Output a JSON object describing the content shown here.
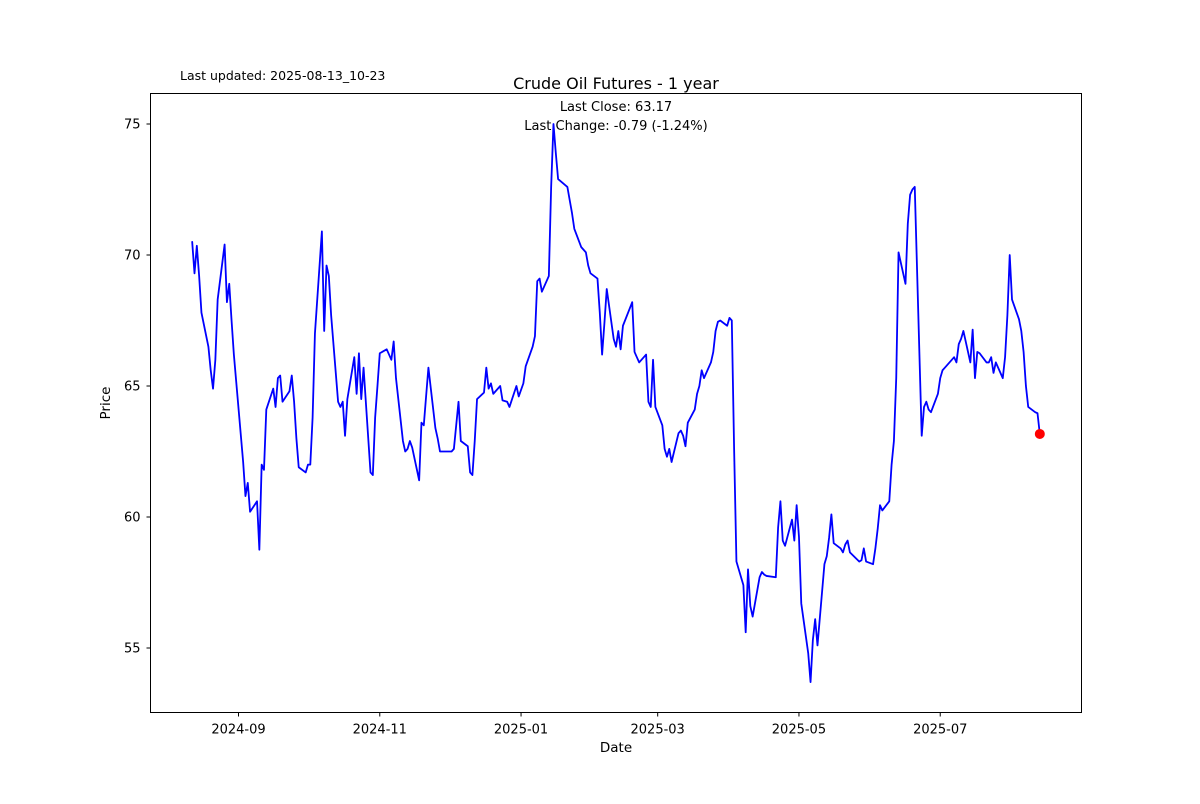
{
  "figure": {
    "title": "Crude Oil Futures - 1 year",
    "last_updated_text": "Last updated: 2025-08-13_10-23",
    "annotation_line1": "Last Close: 63.17",
    "annotation_line2": "Last Change: -0.79 (-1.24%)",
    "xlabel": "Date",
    "ylabel": "Price"
  },
  "chart_data": {
    "type": "line",
    "title": "Crude Oil Futures - 1 year",
    "xlabel": "Date",
    "ylabel": "Price",
    "legend": "none",
    "grid": false,
    "line_color": "#0000ff",
    "last_point_marker_color": "#ff0000",
    "frame_color": "#000000",
    "x_tick_labels": [
      "2024-09",
      "2024-11",
      "2025-01",
      "2025-03",
      "2025-05",
      "2025-07"
    ],
    "y_tick_values": [
      75,
      70,
      65,
      60,
      55
    ],
    "xlim": [
      "2024-07-25",
      "2025-08-31"
    ],
    "ylim": [
      52.6,
      76.1
    ],
    "last_close": 63.17,
    "last_change_abs": -0.79,
    "last_change_pct": -1.24,
    "series": [
      {
        "name": "Crude Oil Futures price",
        "dates": [
          "2024-08-12",
          "2024-08-13",
          "2024-08-14",
          "2024-08-15",
          "2024-08-16",
          "2024-08-19",
          "2024-08-20",
          "2024-08-21",
          "2024-08-22",
          "2024-08-23",
          "2024-08-26",
          "2024-08-27",
          "2024-08-28",
          "2024-08-29",
          "2024-08-30",
          "2024-09-03",
          "2024-09-04",
          "2024-09-05",
          "2024-09-06",
          "2024-09-09",
          "2024-09-10",
          "2024-09-11",
          "2024-09-12",
          "2024-09-13",
          "2024-09-16",
          "2024-09-17",
          "2024-09-18",
          "2024-09-19",
          "2024-09-20",
          "2024-09-23",
          "2024-09-24",
          "2024-09-25",
          "2024-09-26",
          "2024-09-27",
          "2024-09-30",
          "2024-10-01",
          "2024-10-02",
          "2024-10-03",
          "2024-10-04",
          "2024-10-07",
          "2024-10-08",
          "2024-10-09",
          "2024-10-10",
          "2024-10-11",
          "2024-10-14",
          "2024-10-15",
          "2024-10-16",
          "2024-10-17",
          "2024-10-18",
          "2024-10-21",
          "2024-10-22",
          "2024-10-23",
          "2024-10-24",
          "2024-10-25",
          "2024-10-28",
          "2024-10-29",
          "2024-10-30",
          "2024-10-31",
          "2024-11-01",
          "2024-11-04",
          "2024-11-05",
          "2024-11-06",
          "2024-11-07",
          "2024-11-08",
          "2024-11-11",
          "2024-11-12",
          "2024-11-13",
          "2024-11-14",
          "2024-11-15",
          "2024-11-18",
          "2024-11-19",
          "2024-11-20",
          "2024-11-21",
          "2024-11-22",
          "2024-11-25",
          "2024-11-26",
          "2024-11-27",
          "2024-12-02",
          "2024-12-03",
          "2024-12-04",
          "2024-12-05",
          "2024-12-06",
          "2024-12-09",
          "2024-12-10",
          "2024-12-11",
          "2024-12-12",
          "2024-12-13",
          "2024-12-16",
          "2024-12-17",
          "2024-12-18",
          "2024-12-19",
          "2024-12-20",
          "2024-12-23",
          "2024-12-24",
          "2024-12-26",
          "2024-12-27",
          "2024-12-30",
          "2024-12-31",
          "2025-01-02",
          "2025-01-03",
          "2025-01-06",
          "2025-01-07",
          "2025-01-08",
          "2025-01-09",
          "2025-01-10",
          "2025-01-13",
          "2025-01-14",
          "2025-01-15",
          "2025-01-16",
          "2025-01-17",
          "2025-01-21",
          "2025-01-22",
          "2025-01-23",
          "2025-01-24",
          "2025-01-27",
          "2025-01-28",
          "2025-01-29",
          "2025-01-30",
          "2025-01-31",
          "2025-02-03",
          "2025-02-04",
          "2025-02-05",
          "2025-02-06",
          "2025-02-07",
          "2025-02-10",
          "2025-02-11",
          "2025-02-12",
          "2025-02-13",
          "2025-02-14",
          "2025-02-18",
          "2025-02-19",
          "2025-02-20",
          "2025-02-21",
          "2025-02-24",
          "2025-02-25",
          "2025-02-26",
          "2025-02-27",
          "2025-02-28",
          "2025-03-03",
          "2025-03-04",
          "2025-03-05",
          "2025-03-06",
          "2025-03-07",
          "2025-03-10",
          "2025-03-11",
          "2025-03-12",
          "2025-03-13",
          "2025-03-14",
          "2025-03-17",
          "2025-03-18",
          "2025-03-19",
          "2025-03-20",
          "2025-03-21",
          "2025-03-24",
          "2025-03-25",
          "2025-03-26",
          "2025-03-27",
          "2025-03-28",
          "2025-03-31",
          "2025-04-01",
          "2025-04-02",
          "2025-04-03",
          "2025-04-04",
          "2025-04-07",
          "2025-04-08",
          "2025-04-09",
          "2025-04-10",
          "2025-04-11",
          "2025-04-14",
          "2025-04-15",
          "2025-04-16",
          "2025-04-17",
          "2025-04-21",
          "2025-04-22",
          "2025-04-23",
          "2025-04-24",
          "2025-04-25",
          "2025-04-28",
          "2025-04-29",
          "2025-04-30",
          "2025-05-01",
          "2025-05-02",
          "2025-05-05",
          "2025-05-06",
          "2025-05-07",
          "2025-05-08",
          "2025-05-09",
          "2025-05-12",
          "2025-05-13",
          "2025-05-14",
          "2025-05-15",
          "2025-05-16",
          "2025-05-19",
          "2025-05-20",
          "2025-05-21",
          "2025-05-22",
          "2025-05-23",
          "2025-05-27",
          "2025-05-28",
          "2025-05-29",
          "2025-05-30",
          "2025-06-02",
          "2025-06-03",
          "2025-06-04",
          "2025-06-05",
          "2025-06-06",
          "2025-06-09",
          "2025-06-10",
          "2025-06-11",
          "2025-06-12",
          "2025-06-13",
          "2025-06-16",
          "2025-06-17",
          "2025-06-18",
          "2025-06-19",
          "2025-06-20",
          "2025-06-23",
          "2025-06-24",
          "2025-06-25",
          "2025-06-26",
          "2025-06-27",
          "2025-06-30",
          "2025-07-01",
          "2025-07-02",
          "2025-07-03",
          "2025-07-07",
          "2025-07-08",
          "2025-07-09",
          "2025-07-10",
          "2025-07-11",
          "2025-07-14",
          "2025-07-15",
          "2025-07-16",
          "2025-07-17",
          "2025-07-18",
          "2025-07-21",
          "2025-07-22",
          "2025-07-23",
          "2025-07-24",
          "2025-07-25",
          "2025-07-28",
          "2025-07-29",
          "2025-07-30",
          "2025-07-31",
          "2025-08-01",
          "2025-08-04",
          "2025-08-05",
          "2025-08-06",
          "2025-08-07",
          "2025-08-08",
          "2025-08-11",
          "2025-08-12",
          "2025-08-13"
        ],
        "values": [
          70.5,
          69.3,
          70.35,
          69.2,
          67.8,
          66.5,
          65.6,
          64.9,
          66.0,
          68.3,
          70.4,
          68.2,
          68.9,
          67.5,
          66.2,
          62.1,
          60.8,
          61.3,
          60.2,
          60.6,
          58.75,
          62.0,
          61.8,
          64.1,
          64.9,
          64.2,
          65.3,
          65.4,
          64.4,
          64.8,
          65.4,
          64.4,
          63.0,
          61.9,
          61.7,
          62.0,
          62.0,
          63.8,
          67.0,
          70.9,
          67.1,
          69.6,
          69.2,
          67.7,
          64.4,
          64.2,
          64.4,
          63.1,
          64.5,
          66.1,
          64.7,
          66.25,
          64.5,
          65.7,
          61.7,
          61.6,
          63.8,
          65.0,
          66.25,
          66.4,
          66.2,
          66.0,
          66.7,
          65.3,
          62.9,
          62.5,
          62.6,
          62.9,
          62.65,
          61.4,
          63.6,
          63.5,
          64.6,
          65.7,
          63.4,
          63.0,
          62.5,
          62.5,
          62.6,
          63.5,
          64.4,
          62.9,
          62.7,
          61.7,
          61.6,
          62.9,
          64.5,
          64.75,
          65.7,
          64.9,
          65.1,
          64.7,
          65.0,
          64.45,
          64.4,
          64.2,
          65.0,
          64.6,
          65.1,
          65.75,
          66.5,
          66.9,
          69.0,
          69.1,
          68.6,
          69.2,
          72.6,
          75.0,
          73.9,
          72.9,
          72.6,
          72.1,
          71.6,
          71.0,
          70.3,
          70.2,
          70.1,
          69.6,
          69.3,
          69.1,
          67.8,
          66.2,
          67.4,
          68.7,
          66.8,
          66.5,
          67.1,
          66.4,
          67.3,
          68.2,
          66.3,
          66.1,
          65.9,
          66.2,
          64.4,
          64.2,
          66.0,
          64.2,
          63.5,
          62.6,
          62.3,
          62.6,
          62.1,
          63.2,
          63.3,
          63.1,
          62.7,
          63.6,
          64.1,
          64.7,
          65.0,
          65.6,
          65.3,
          65.9,
          66.3,
          67.1,
          67.45,
          67.5,
          67.3,
          67.6,
          67.5,
          62.6,
          58.3,
          57.4,
          55.6,
          58.0,
          56.6,
          56.2,
          57.7,
          57.9,
          57.8,
          57.75,
          57.7,
          59.6,
          60.6,
          59.1,
          58.9,
          59.9,
          59.1,
          60.45,
          59.25,
          56.7,
          54.8,
          53.7,
          55.3,
          56.1,
          55.1,
          58.2,
          58.5,
          59.2,
          60.1,
          59.0,
          58.8,
          58.65,
          58.95,
          59.1,
          58.65,
          58.3,
          58.35,
          58.8,
          58.3,
          58.2,
          58.8,
          59.55,
          60.45,
          60.25,
          60.6,
          62.0,
          62.9,
          65.3,
          70.1,
          68.9,
          71.2,
          72.3,
          72.5,
          72.6,
          63.1,
          64.2,
          64.4,
          64.1,
          64.0,
          64.7,
          65.3,
          65.6,
          65.7,
          66.1,
          65.9,
          66.6,
          66.8,
          67.1,
          65.9,
          67.15,
          65.3,
          66.3,
          66.25,
          65.9,
          65.9,
          66.1,
          65.5,
          65.9,
          65.3,
          66.1,
          67.7,
          70.0,
          68.3,
          67.55,
          67.1,
          66.3,
          65.0,
          64.2,
          64.0,
          63.96,
          63.17
        ]
      }
    ]
  }
}
